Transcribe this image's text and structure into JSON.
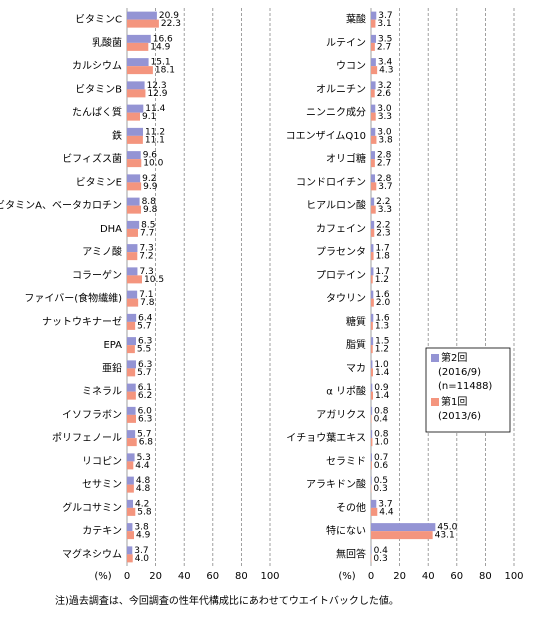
{
  "chart_data": [
    {
      "type": "bar",
      "orientation": "horizontal",
      "categories": [
        "ビタミンC",
        "乳酸菌",
        "カルシウム",
        "ビタミンB",
        "たんぱく質",
        "鉄",
        "ビフィズス菌",
        "ビタミンE",
        "ビタミンA、ベータカロチン",
        "DHA",
        "アミノ酸",
        "コラーゲン",
        "ファイバー(食物繊維)",
        "ナットウキナーゼ",
        "EPA",
        "亜鉛",
        "ミネラル",
        "イソフラボン",
        "ポリフェノール",
        "リコピン",
        "セサミン",
        "グルコサミン",
        "カテキン",
        "マグネシウム"
      ],
      "series": [
        {
          "name": "第2回",
          "color": "#9494d4",
          "values": [
            20.9,
            16.6,
            15.1,
            12.3,
            11.4,
            11.2,
            9.6,
            9.2,
            8.8,
            8.5,
            7.3,
            7.3,
            7.1,
            6.4,
            6.3,
            6.3,
            6.1,
            6.0,
            5.7,
            5.3,
            4.8,
            4.2,
            3.8,
            3.7
          ],
          "value_labels": [
            "20.9",
            "16.6",
            "15.1",
            "12.3",
            "11.4",
            "11.2",
            "9.6",
            "9.2",
            "8.8",
            "8.5",
            "7.3",
            "7.3",
            "7.1",
            "6.4",
            "6.3",
            "6.3",
            "6.1",
            "6.0",
            "5.7",
            "5.3",
            "4.8",
            "4.2",
            "3.8",
            "3.7"
          ]
        },
        {
          "name": "第1回",
          "color": "#f4957e",
          "values": [
            22.3,
            14.9,
            18.1,
            12.9,
            9.1,
            11.1,
            10.0,
            9.9,
            9.8,
            7.7,
            7.2,
            10.5,
            7.8,
            5.7,
            5.5,
            5.7,
            6.2,
            6.3,
            6.8,
            4.4,
            4.8,
            5.8,
            4.9,
            4.0
          ],
          "value_labels": [
            "22.3",
            "14.9",
            "18.1",
            "12.9",
            "9.1",
            "11.1",
            "10.0",
            "9.9",
            "9.8",
            "7.7",
            "7.2",
            "10.5",
            "7.8",
            "5.7",
            "5.5",
            "5.7",
            "6.2",
            "6.3",
            "6.8",
            "4.4",
            "4.8",
            "5.8",
            "4.9",
            "4.0"
          ]
        }
      ],
      "x_label": "(%)",
      "xlim": [
        0,
        100
      ],
      "xticks": [
        0,
        20,
        40,
        60,
        80,
        100
      ],
      "grid": true
    },
    {
      "type": "bar",
      "orientation": "horizontal",
      "categories": [
        "葉酸",
        "ルテイン",
        "ウコン",
        "オルニチン",
        "ニンニク成分",
        "コエンザイムQ10",
        "オリゴ糖",
        "コンドロイチン",
        "ヒアルロン酸",
        "カフェイン",
        "プラセンタ",
        "プロテイン",
        "タウリン",
        "糖質",
        "脂質",
        "マカ",
        "α リポ酸",
        "アガリクス",
        "イチョウ葉エキス",
        "セラミド",
        "アラキドン酸",
        "その他",
        "特にない",
        "無回答"
      ],
      "series": [
        {
          "name": "第2回",
          "notes": [
            "(2016/9)",
            "(n=11488)"
          ],
          "color": "#9494d4",
          "values": [
            3.7,
            3.5,
            3.4,
            3.2,
            3.0,
            3.0,
            2.8,
            2.8,
            2.2,
            2.2,
            1.7,
            1.7,
            1.6,
            1.6,
            1.5,
            1.0,
            0.9,
            0.8,
            0.8,
            0.7,
            0.5,
            3.7,
            45.0,
            0.4
          ],
          "value_labels": [
            "3.7",
            "3.5",
            "3.4",
            "3.2",
            "3.0",
            "3.0",
            "2.8",
            "2.8",
            "2.2",
            "2.2",
            "1.7",
            "1.7",
            "1.6",
            "1.6",
            "1.5",
            "1.0",
            "0.9",
            "0.8",
            "0.8",
            "0.7",
            "0.5",
            "3.7",
            "45.0",
            "0.4"
          ]
        },
        {
          "name": "第1回",
          "notes": [
            "(2013/6)"
          ],
          "color": "#f4957e",
          "values": [
            3.1,
            2.7,
            4.3,
            2.6,
            3.3,
            3.8,
            2.7,
            3.7,
            3.3,
            2.3,
            1.8,
            1.2,
            2.0,
            1.3,
            1.2,
            1.4,
            1.4,
            0.4,
            1.0,
            0.6,
            0.3,
            4.4,
            43.1,
            0.3
          ],
          "value_labels": [
            "3.1",
            "2.7",
            "4.3",
            "2.6",
            "3.3",
            "3.8",
            "2.7",
            "3.7",
            "3.3",
            "2.3",
            "1.8",
            "1.2",
            "2.0",
            "1.3",
            "1.2",
            "1.4",
            "1.4",
            "0.4",
            "1.0",
            "0.6",
            "0.3",
            "4.4",
            "43.1",
            "0.3"
          ]
        }
      ],
      "x_label": "(%)",
      "xlim": [
        0,
        100
      ],
      "xticks": [
        0,
        20,
        40,
        60,
        80,
        100
      ],
      "grid": true,
      "legend": "right"
    }
  ],
  "note": "注)過去調査は、今回調査の性年代構成比にあわせてウエイトバックした値。"
}
